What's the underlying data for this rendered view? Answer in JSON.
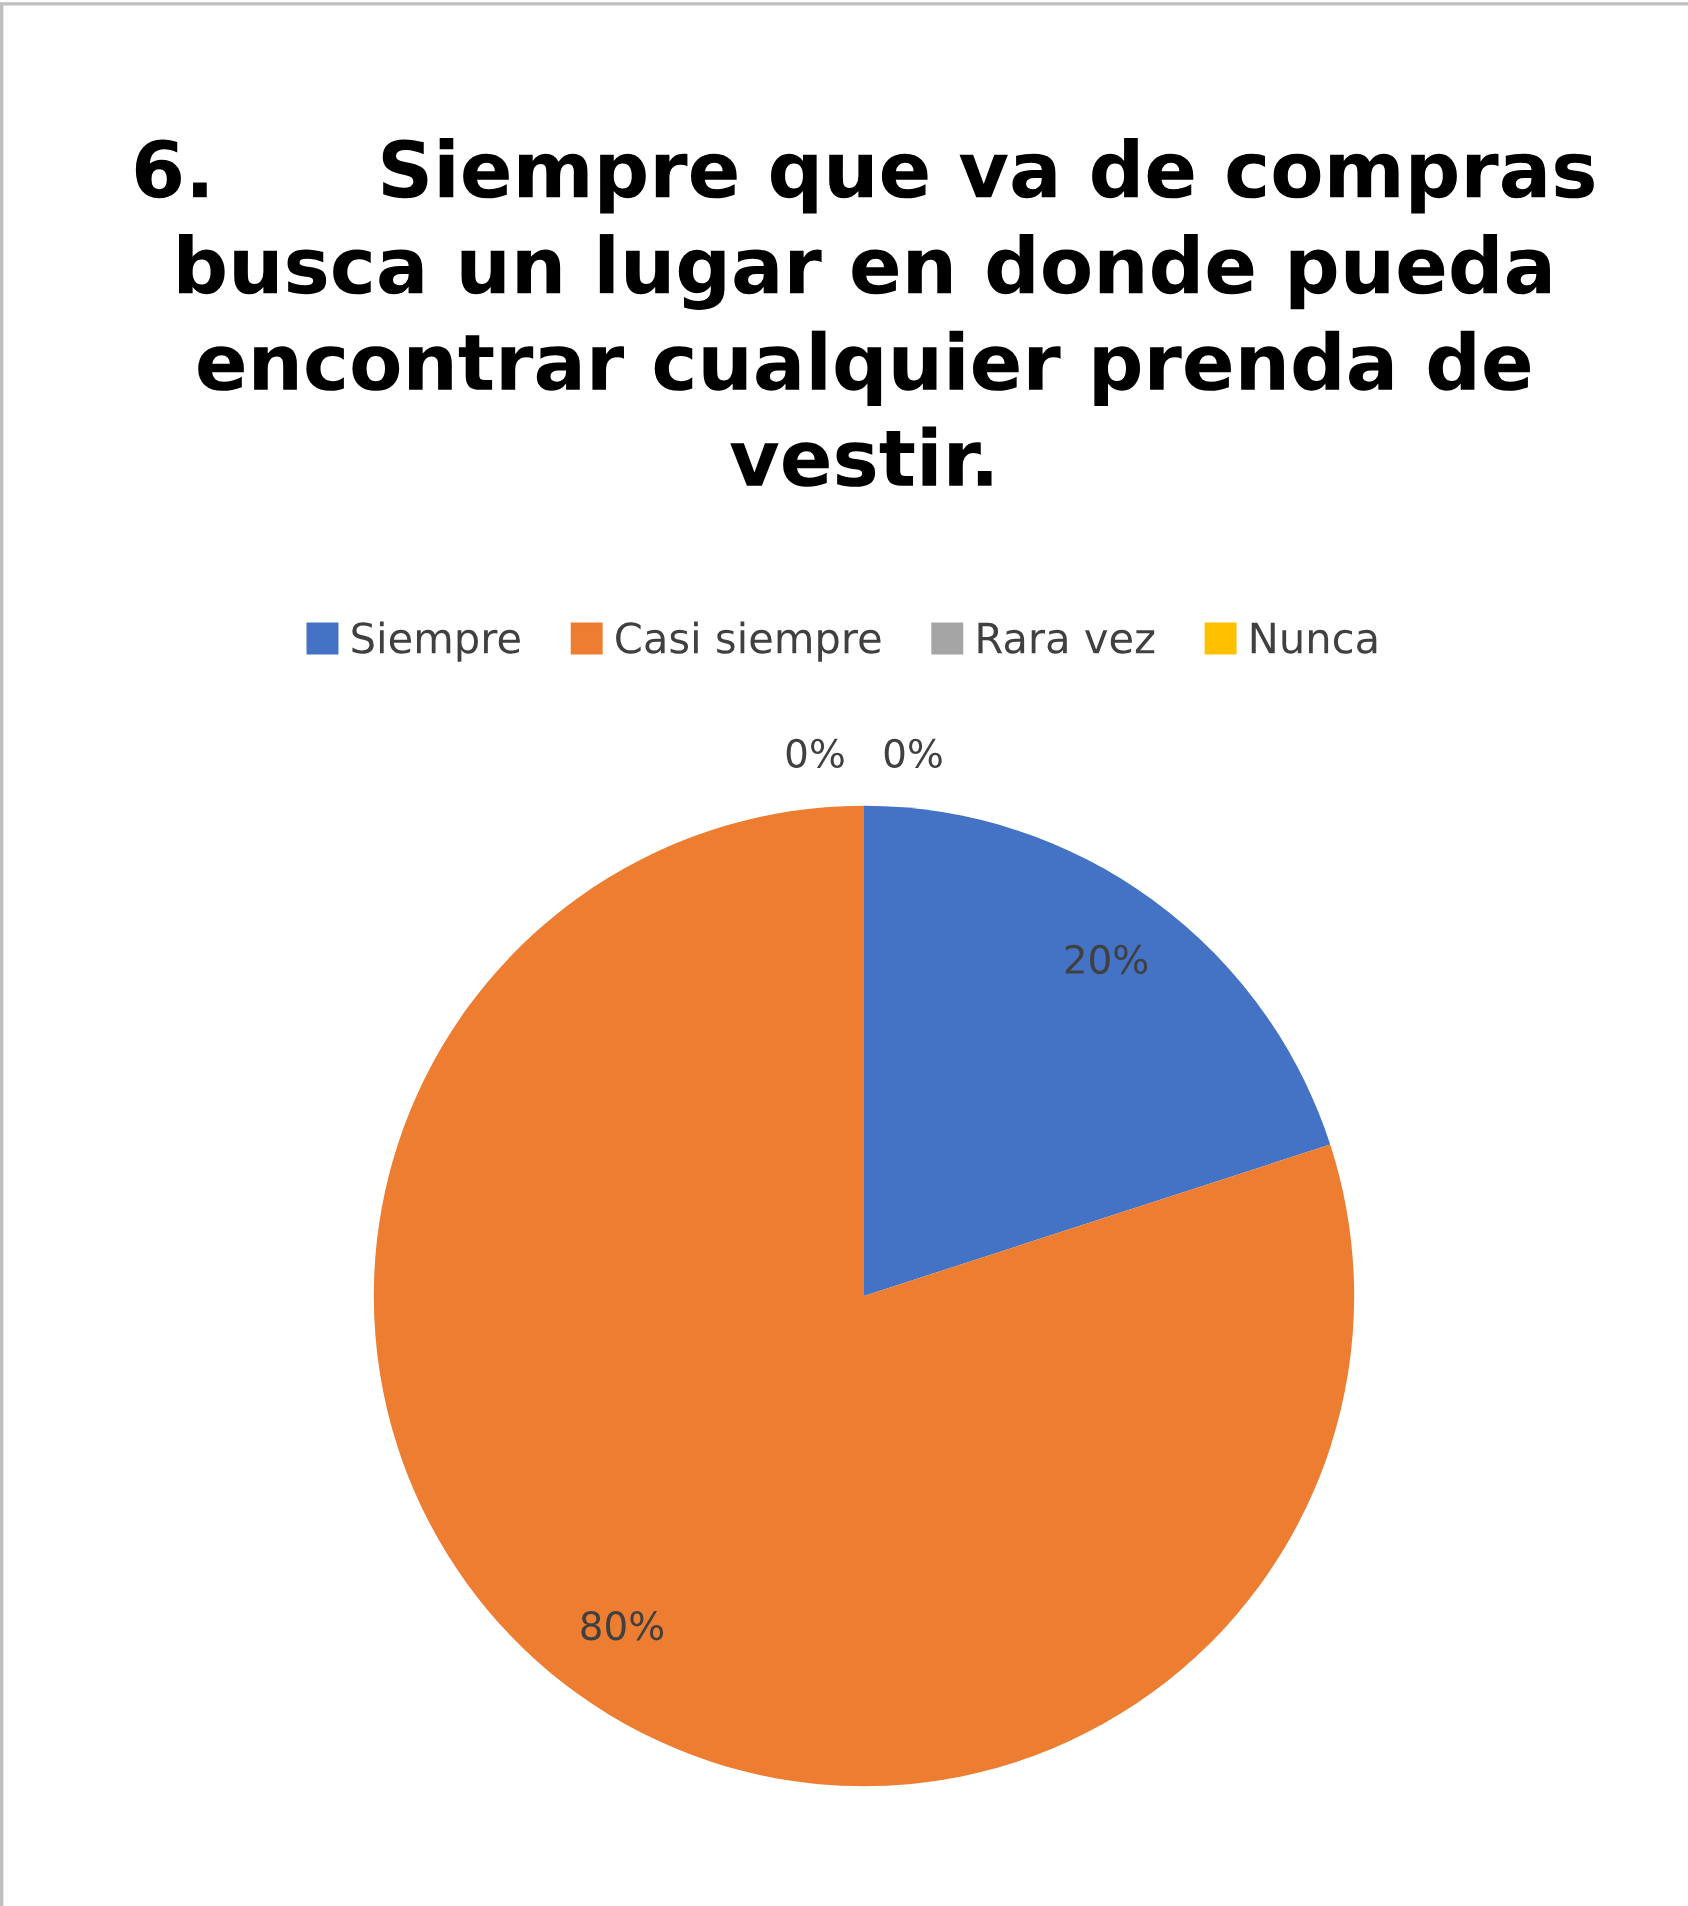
{
  "chart_data": {
    "type": "pie",
    "title": "6.      Siempre que va de compras\nbusca un lugar en donde pueda\nencontrar cualquier prenda de\nvestir.",
    "categories": [
      "Siempre",
      "Casi siempre",
      "Rara vez",
      "Nunca"
    ],
    "values": [
      20,
      80,
      0,
      0
    ],
    "colors": [
      "#4472c4",
      "#ed7d31",
      "#a5a5a5",
      "#ffc000"
    ],
    "value_labels": [
      "20%",
      "80%",
      "0%",
      "0%"
    ],
    "legend": "top"
  }
}
